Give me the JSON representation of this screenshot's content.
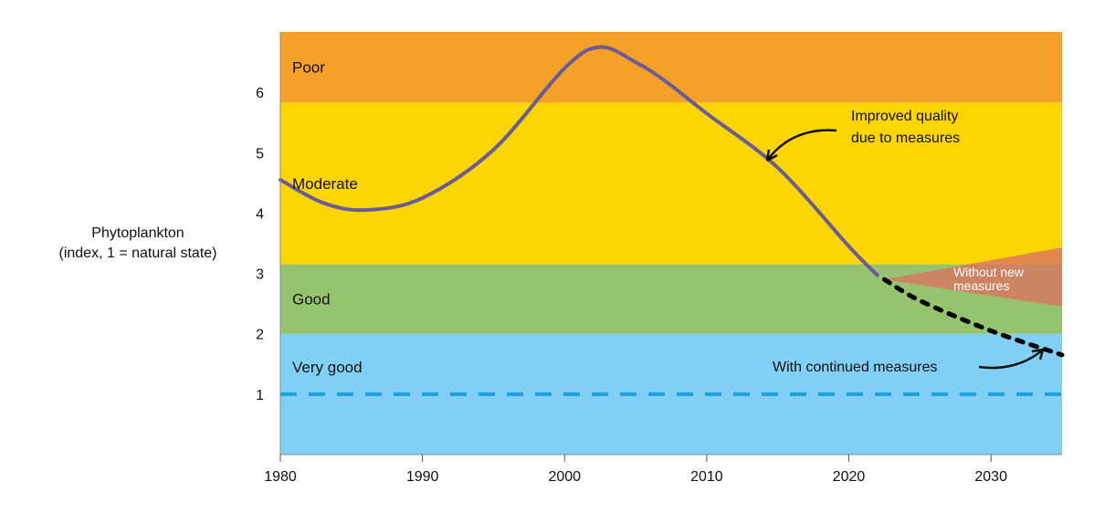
{
  "chart_data": {
    "type": "line",
    "ylabel": [
      "Phytoplankton",
      "(index, 1 = natural state)"
    ],
    "xlabel": "",
    "xlim": [
      1980,
      2035
    ],
    "ylim": [
      0,
      7
    ],
    "x_ticks": [
      1980,
      1990,
      2000,
      2010,
      2020,
      2030
    ],
    "y_ticks": [
      1,
      2,
      3,
      4,
      5,
      6
    ],
    "grid": false,
    "bands": [
      {
        "label": "Poor",
        "from": 5.83,
        "to": 7,
        "color": "#F5A027"
      },
      {
        "label": "Moderate",
        "from": 3.15,
        "to": 5.83,
        "color": "#FDD500"
      },
      {
        "label": "Good",
        "from": 2,
        "to": 3.15,
        "color": "#96C46E"
      },
      {
        "label": "Very good",
        "from": 0,
        "to": 2,
        "color": "#81CFF4"
      }
    ],
    "reference_line": {
      "y": 1,
      "color": "#1EA0DC",
      "style": "dashed"
    },
    "series": [
      {
        "style": "solid",
        "color": "#6A5B9A",
        "x": [
          1980,
          1983,
          1986,
          1990,
          1995,
          2000,
          2002.5,
          2005,
          2007,
          2010,
          2015,
          2020,
          2022
        ],
        "y": [
          4.55,
          4.17,
          4.05,
          4.25,
          5.05,
          6.4,
          6.75,
          6.5,
          6.2,
          5.65,
          4.75,
          3.45,
          2.97
        ]
      },
      {
        "name": "With continued measures",
        "style": "dotted",
        "color": "#000000",
        "x": [
          2022.5,
          2025,
          2030,
          2035
        ],
        "y": [
          2.9,
          2.55,
          2.05,
          1.65
        ]
      }
    ],
    "range": {
      "name": "Without new measures",
      "color": "#D9745F",
      "x": [
        2022.5,
        2035
      ],
      "upper": [
        2.9,
        3.43
      ],
      "lower": [
        2.9,
        2.45
      ]
    },
    "annotations": [
      {
        "text": [
          "Improved quality",
          "due to measures"
        ]
      },
      {
        "text": [
          "With continued measures"
        ]
      }
    ]
  }
}
